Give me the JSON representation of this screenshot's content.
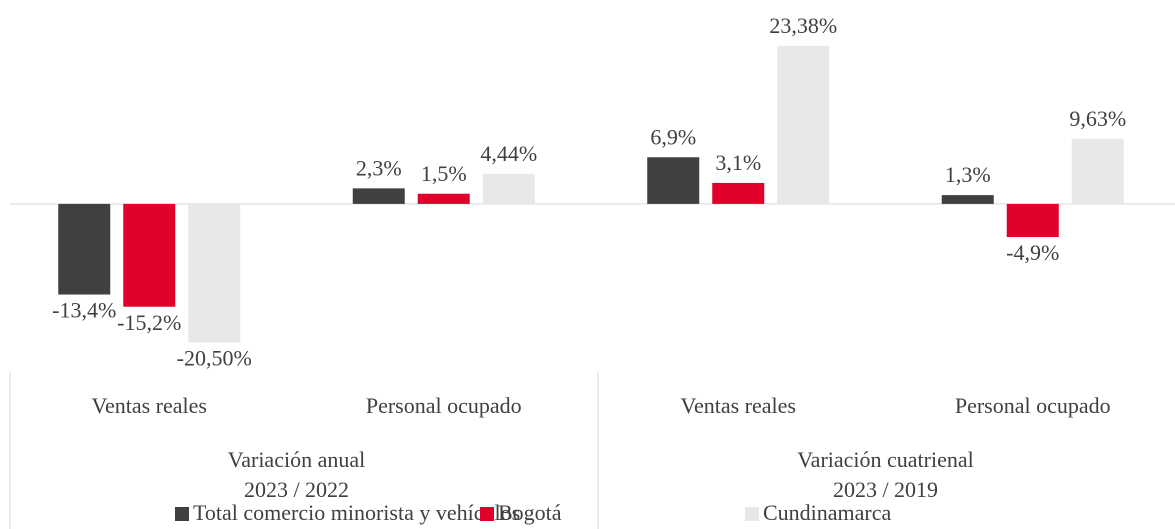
{
  "chart_data": {
    "type": "bar",
    "categories": [
      "Ventas reales",
      "Personal ocupado",
      "Ventas reales",
      "Personal ocupado"
    ],
    "groups": [
      [
        "Variación anual",
        "2023 / 2022"
      ],
      [
        "Variación cuatrienal",
        "2023 / 2019"
      ]
    ],
    "series": [
      {
        "name": "Total comercio minorista y vehículos",
        "color": "#404040",
        "values": [
          -13.4,
          2.3,
          6.9,
          1.3
        ],
        "value_labels": [
          "-13,4%",
          "2,3%",
          "6,9%",
          "1,3%"
        ]
      },
      {
        "name": "Bogotá",
        "color": "#e0002a",
        "values": [
          -15.2,
          1.5,
          3.1,
          -4.9
        ],
        "value_labels": [
          "-15,2%",
          "1,5%",
          "3,1%",
          "-4,9%"
        ]
      },
      {
        "name": "Cundinamarca",
        "color": "#e8e8e8",
        "values": [
          -20.5,
          4.44,
          23.38,
          9.63
        ],
        "value_labels": [
          "-20,50%",
          "4,44%",
          "23,38%",
          "9,63%"
        ]
      }
    ],
    "ylim": [
      -25,
      30
    ],
    "legend": "bottom"
  }
}
